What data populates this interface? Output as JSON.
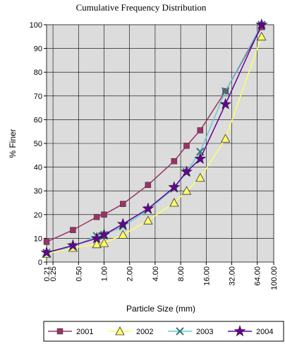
{
  "chart_data": {
    "type": "line",
    "title": "Cumulative Frequency Distribution",
    "x_label": "Particle Size (mm)",
    "y_label": "% Finer",
    "x": [
      0.21,
      0.43,
      0.82,
      1.0,
      1.67,
      3.3,
      6.7,
      9.4,
      13.6,
      27,
      72
    ],
    "xlim": [
      0.21,
      100
    ],
    "xscale": "log",
    "xticks": [
      {
        "value": 0.21,
        "label": "0.21"
      },
      {
        "value": 0.25,
        "label": "0.25"
      },
      {
        "value": 0.5,
        "label": "0.50"
      },
      {
        "value": 1,
        "label": "1.00"
      },
      {
        "value": 2,
        "label": "2.00"
      },
      {
        "value": 4,
        "label": "4.00"
      },
      {
        "value": 8,
        "label": "8.00"
      },
      {
        "value": 16,
        "label": "16.00"
      },
      {
        "value": 32,
        "label": "32.00"
      },
      {
        "value": 64,
        "label": "64.00"
      },
      {
        "value": 100,
        "label": "100.00"
      }
    ],
    "ylim": [
      0,
      100
    ],
    "yticks": [
      0,
      10,
      20,
      30,
      40,
      50,
      60,
      70,
      80,
      90,
      100
    ],
    "grid": true,
    "series": [
      {
        "name": "2001",
        "color": "#993366",
        "marker": "square",
        "values": [
          8.5,
          13.5,
          19,
          20,
          24.5,
          32.5,
          42.5,
          49,
          55.5,
          72,
          99
        ]
      },
      {
        "name": "2002",
        "color": "#ffff66",
        "marker": "triangle",
        "values": [
          3.5,
          6,
          7.5,
          8,
          11.5,
          17.5,
          25,
          30,
          35.5,
          52,
          95
        ]
      },
      {
        "name": "2003",
        "color": "#66cccc",
        "marker": "x",
        "values": [
          4,
          6.5,
          11,
          11.5,
          15,
          22,
          31,
          38,
          46.5,
          72,
          100
        ]
      },
      {
        "name": "2004",
        "color": "#660099",
        "marker": "star",
        "values": [
          4,
          7,
          10,
          11.5,
          16,
          22.5,
          31.5,
          38,
          43.5,
          66.5,
          100
        ]
      }
    ]
  }
}
